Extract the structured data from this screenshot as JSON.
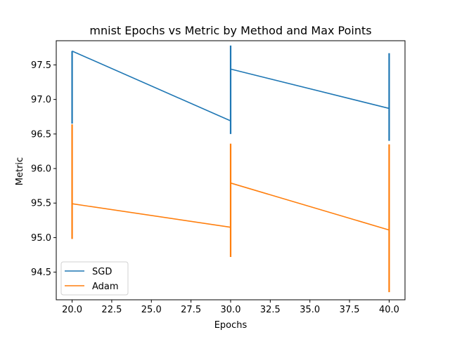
{
  "chart_data": {
    "type": "line",
    "title": "mnist Epochs vs Metric by Method and Max Points",
    "xlabel": "Epochs",
    "ylabel": "Metric",
    "xlim": [
      19.0,
      41.0
    ],
    "ylim": [
      94.1,
      97.85
    ],
    "xticks": [
      20.0,
      22.5,
      25.0,
      27.5,
      30.0,
      32.5,
      35.0,
      37.5,
      40.0
    ],
    "xtick_labels": [
      "20.0",
      "22.5",
      "25.0",
      "27.5",
      "30.0",
      "32.5",
      "35.0",
      "37.5",
      "40.0"
    ],
    "yticks": [
      94.5,
      95.0,
      95.5,
      96.0,
      96.5,
      97.0,
      97.5
    ],
    "ytick_labels": [
      "94.5",
      "95.0",
      "95.5",
      "96.0",
      "96.5",
      "97.0",
      "97.5"
    ],
    "grid": false,
    "legend_position": "lower-left",
    "series": [
      {
        "name": "SGD",
        "color": "#1f77b4",
        "x": [
          20,
          30,
          40
        ],
        "values": [
          97.7,
          96.69,
          96.87
        ],
        "error_ranges": [
          [
            96.65,
            97.7
          ],
          [
            96.5,
            97.78
          ],
          [
            96.4,
            97.67
          ]
        ]
      },
      {
        "name": "Adam",
        "color": "#ff7f0e",
        "x": [
          20,
          30,
          40
        ],
        "values": [
          95.49,
          95.15,
          95.11
        ],
        "error_ranges": [
          [
            94.98,
            96.64
          ],
          [
            94.72,
            96.36
          ],
          [
            94.21,
            96.35
          ]
        ]
      }
    ],
    "segments": [
      {
        "series": 0,
        "from": [
          20,
          97.7
        ],
        "to": [
          30,
          96.69
        ]
      },
      {
        "series": 0,
        "from": [
          30,
          97.44
        ],
        "to": [
          40,
          96.87
        ]
      },
      {
        "series": 1,
        "from": [
          20,
          95.49
        ],
        "to": [
          30,
          95.15
        ]
      },
      {
        "series": 1,
        "from": [
          30,
          95.79
        ],
        "to": [
          40,
          95.11
        ]
      }
    ]
  }
}
